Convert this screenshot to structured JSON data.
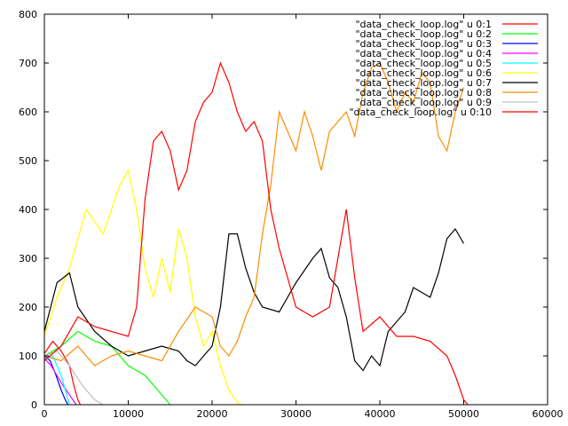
{
  "chart_data": {
    "type": "line",
    "title": "",
    "xlabel": "",
    "ylabel": "",
    "xlim": [
      0,
      60000
    ],
    "ylim": [
      0,
      800
    ],
    "xticks": [
      0,
      10000,
      20000,
      30000,
      40000,
      50000,
      60000
    ],
    "yticks": [
      0,
      100,
      200,
      300,
      400,
      500,
      600,
      700,
      800
    ],
    "grid": false,
    "legend_position": "top-right",
    "series": [
      {
        "name": "\"data_check_loop.log\" u 0:1",
        "color": "#ff0000",
        "points": [
          [
            0,
            105
          ],
          [
            1000,
            130
          ],
          [
            2000,
            110
          ],
          [
            3000,
            80
          ],
          [
            3500,
            40
          ],
          [
            4000,
            10
          ],
          [
            4300,
            0
          ]
        ]
      },
      {
        "name": "\"data_check_loop.log\" u 0:2",
        "color": "#00ff00",
        "points": [
          [
            0,
            100
          ],
          [
            2000,
            120
          ],
          [
            4000,
            150
          ],
          [
            6000,
            130
          ],
          [
            8000,
            120
          ],
          [
            10000,
            80
          ],
          [
            12000,
            60
          ],
          [
            13000,
            40
          ],
          [
            14000,
            20
          ],
          [
            15000,
            0
          ]
        ]
      },
      {
        "name": "\"data_check_loop.log\" u 0:3",
        "color": "#0000ff",
        "points": [
          [
            0,
            100
          ],
          [
            700,
            90
          ],
          [
            1400,
            60
          ],
          [
            2000,
            30
          ],
          [
            2500,
            10
          ],
          [
            2800,
            0
          ]
        ]
      },
      {
        "name": "\"data_check_loop.log\" u 0:4",
        "color": "#ff00ff",
        "points": [
          [
            0,
            95
          ],
          [
            800,
            80
          ],
          [
            1500,
            60
          ],
          [
            2200,
            40
          ],
          [
            3000,
            20
          ],
          [
            3800,
            0
          ]
        ]
      },
      {
        "name": "\"data_check_loop.log\" u 0:5",
        "color": "#00ffff",
        "points": [
          [
            0,
            90
          ],
          [
            1000,
            100
          ],
          [
            2000,
            60
          ],
          [
            2500,
            30
          ],
          [
            3000,
            0
          ]
        ]
      },
      {
        "name": "\"data_check_loop.log\" u 0:6",
        "color": "#ffff00",
        "points": [
          [
            0,
            140
          ],
          [
            1500,
            220
          ],
          [
            3000,
            280
          ],
          [
            5000,
            400
          ],
          [
            7000,
            350
          ],
          [
            9000,
            450
          ],
          [
            10000,
            480
          ],
          [
            11000,
            400
          ],
          [
            12000,
            280
          ],
          [
            13000,
            220
          ],
          [
            14000,
            300
          ],
          [
            15000,
            230
          ],
          [
            16000,
            360
          ],
          [
            17000,
            300
          ],
          [
            18000,
            180
          ],
          [
            19000,
            120
          ],
          [
            20000,
            150
          ],
          [
            21000,
            80
          ],
          [
            22000,
            30
          ],
          [
            23000,
            5
          ],
          [
            23500,
            0
          ]
        ]
      },
      {
        "name": "\"data_check_loop.log\" u 0:7",
        "color": "#000000",
        "points": [
          [
            0,
            150
          ],
          [
            1500,
            250
          ],
          [
            3000,
            270
          ],
          [
            4000,
            200
          ],
          [
            6000,
            150
          ],
          [
            8000,
            120
          ],
          [
            10000,
            100
          ],
          [
            12000,
            110
          ],
          [
            14000,
            120
          ],
          [
            16000,
            110
          ],
          [
            17000,
            90
          ],
          [
            18000,
            80
          ],
          [
            19000,
            100
          ],
          [
            20000,
            120
          ],
          [
            21000,
            200
          ],
          [
            22000,
            350
          ],
          [
            23000,
            350
          ],
          [
            24000,
            280
          ],
          [
            25000,
            230
          ],
          [
            26000,
            200
          ],
          [
            28000,
            190
          ],
          [
            30000,
            250
          ],
          [
            32000,
            300
          ],
          [
            33000,
            320
          ],
          [
            34000,
            260
          ],
          [
            35000,
            240
          ],
          [
            36000,
            180
          ],
          [
            37000,
            90
          ],
          [
            38000,
            70
          ],
          [
            39000,
            100
          ],
          [
            40000,
            80
          ],
          [
            41000,
            150
          ],
          [
            42000,
            170
          ],
          [
            43000,
            190
          ],
          [
            44000,
            240
          ],
          [
            46000,
            220
          ],
          [
            47000,
            270
          ],
          [
            48000,
            340
          ],
          [
            49000,
            360
          ],
          [
            50000,
            330
          ]
        ]
      },
      {
        "name": "\"data_check_loop.log\" u 0:8",
        "color": "#ff8c00",
        "points": [
          [
            0,
            100
          ],
          [
            2000,
            90
          ],
          [
            4000,
            120
          ],
          [
            6000,
            80
          ],
          [
            8000,
            100
          ],
          [
            10000,
            110
          ],
          [
            12000,
            100
          ],
          [
            14000,
            90
          ],
          [
            16000,
            150
          ],
          [
            18000,
            200
          ],
          [
            20000,
            180
          ],
          [
            21000,
            120
          ],
          [
            22000,
            100
          ],
          [
            23000,
            130
          ],
          [
            24000,
            180
          ],
          [
            25000,
            220
          ],
          [
            26000,
            350
          ],
          [
            27000,
            450
          ],
          [
            28000,
            600
          ],
          [
            29000,
            560
          ],
          [
            30000,
            520
          ],
          [
            31000,
            600
          ],
          [
            32000,
            550
          ],
          [
            33000,
            480
          ],
          [
            34000,
            560
          ],
          [
            36000,
            600
          ],
          [
            37000,
            550
          ],
          [
            38000,
            640
          ],
          [
            39000,
            690
          ],
          [
            40000,
            700
          ],
          [
            41000,
            660
          ],
          [
            42000,
            600
          ],
          [
            43000,
            640
          ],
          [
            44000,
            620
          ],
          [
            45000,
            680
          ],
          [
            46000,
            660
          ],
          [
            47000,
            550
          ],
          [
            48000,
            520
          ],
          [
            49000,
            600
          ],
          [
            50000,
            650
          ]
        ]
      },
      {
        "name": "\"data_check_loop.log\" u 0:9",
        "color": "#c0c0c0",
        "points": [
          [
            0,
            100
          ],
          [
            1500,
            110
          ],
          [
            3000,
            80
          ],
          [
            4500,
            40
          ],
          [
            6000,
            10
          ],
          [
            7000,
            0
          ]
        ]
      },
      {
        "name": "\"data_check_loop.log\" u 0:10",
        "color": "#ff0000",
        "points": [
          [
            0,
            90
          ],
          [
            2000,
            120
          ],
          [
            4000,
            180
          ],
          [
            6000,
            160
          ],
          [
            8000,
            150
          ],
          [
            10000,
            140
          ],
          [
            11000,
            200
          ],
          [
            12000,
            420
          ],
          [
            13000,
            540
          ],
          [
            14000,
            560
          ],
          [
            15000,
            520
          ],
          [
            16000,
            440
          ],
          [
            17000,
            480
          ],
          [
            18000,
            580
          ],
          [
            19000,
            620
          ],
          [
            20000,
            640
          ],
          [
            21000,
            700
          ],
          [
            22000,
            660
          ],
          [
            23000,
            600
          ],
          [
            24000,
            560
          ],
          [
            25000,
            580
          ],
          [
            26000,
            540
          ],
          [
            27000,
            400
          ],
          [
            28000,
            320
          ],
          [
            29000,
            260
          ],
          [
            30000,
            200
          ],
          [
            32000,
            180
          ],
          [
            34000,
            200
          ],
          [
            36000,
            400
          ],
          [
            37000,
            260
          ],
          [
            38000,
            150
          ],
          [
            40000,
            180
          ],
          [
            42000,
            140
          ],
          [
            44000,
            140
          ],
          [
            46000,
            130
          ],
          [
            48000,
            100
          ],
          [
            49000,
            60
          ],
          [
            50000,
            10
          ],
          [
            50500,
            0
          ]
        ]
      }
    ]
  }
}
